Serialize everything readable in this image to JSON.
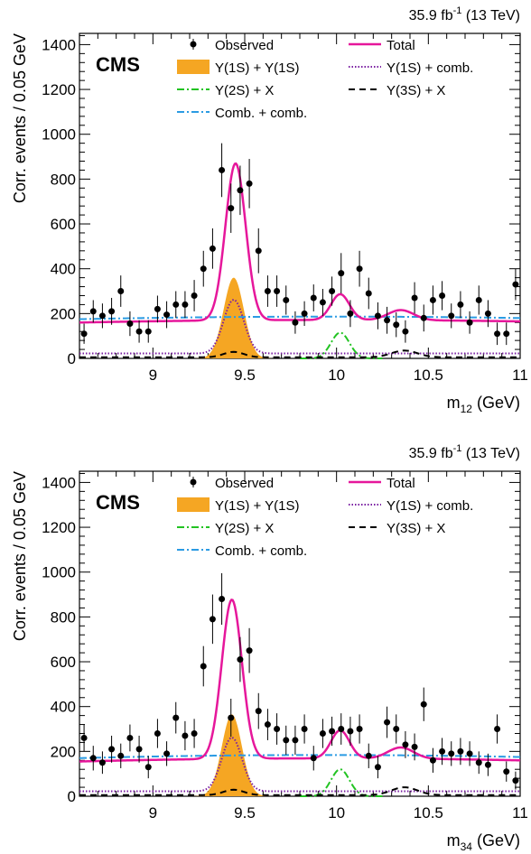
{
  "chart_data": [
    {
      "type": "line",
      "title": "",
      "lumi_label": "35.9 fb",
      "lumi_sup": "-1",
      "lumi_energy": "(13 TeV)",
      "cms_label": "CMS",
      "ylabel": "Corr. events / 0.05 GeV",
      "xlabel_main": "m",
      "xlabel_sub": "12",
      "xlabel_unit": "(GeV)",
      "xlim": [
        8.6,
        11.0
      ],
      "ylim": [
        0,
        1450
      ],
      "x_ticks": [
        9,
        9.5,
        10,
        10.5,
        11
      ],
      "x_tick_labels": [
        "9",
        "9.5",
        "10",
        "10.5",
        "11"
      ],
      "y_ticks": [
        0,
        200,
        400,
        600,
        800,
        1000,
        1200,
        1400
      ],
      "y_tick_labels": [
        "0",
        "200",
        "400",
        "600",
        "800",
        "1000",
        "1200",
        "1400"
      ],
      "grid": false,
      "legend": {
        "placement": "top",
        "entries": [
          {
            "label": "Observed",
            "style": "marker",
            "color": "#000000"
          },
          {
            "label": "Total",
            "style": "solid",
            "color": "#e6179b"
          },
          {
            "label": "Υ(1S) + Υ(1S)",
            "style": "fill",
            "color": "#f5a623"
          },
          {
            "label": "Υ(1S) + comb.",
            "style": "dotted",
            "color": "#7a1fa2"
          },
          {
            "label": "Υ(2S) + X",
            "style": "dashdot",
            "color": "#22c322"
          },
          {
            "label": "Υ(3S) + X",
            "style": "dashed",
            "color": "#000000"
          },
          {
            "label": "Comb. + comb.",
            "style": "dashdot",
            "color": "#2b9be3"
          }
        ]
      },
      "observed": {
        "x": [
          8.625,
          8.675,
          8.725,
          8.775,
          8.825,
          8.875,
          8.925,
          8.975,
          9.025,
          9.075,
          9.125,
          9.175,
          9.225,
          9.275,
          9.325,
          9.375,
          9.425,
          9.475,
          9.525,
          9.575,
          9.625,
          9.675,
          9.725,
          9.775,
          9.825,
          9.875,
          9.925,
          9.975,
          10.025,
          10.075,
          10.125,
          10.175,
          10.225,
          10.275,
          10.325,
          10.375,
          10.425,
          10.475,
          10.525,
          10.575,
          10.625,
          10.675,
          10.725,
          10.775,
          10.825,
          10.875,
          10.925,
          10.975
        ],
        "y": [
          110,
          210,
          190,
          210,
          300,
          155,
          120,
          120,
          220,
          195,
          240,
          240,
          280,
          400,
          490,
          840,
          670,
          750,
          780,
          480,
          300,
          300,
          260,
          160,
          200,
          270,
          250,
          300,
          380,
          200,
          400,
          290,
          190,
          170,
          150,
          120,
          270,
          180,
          260,
          280,
          190,
          240,
          160,
          260,
          200,
          110,
          110,
          330
        ],
        "err": [
          45,
          50,
          55,
          60,
          70,
          55,
          50,
          50,
          60,
          60,
          60,
          60,
          70,
          80,
          90,
          120,
          110,
          110,
          110,
          100,
          70,
          70,
          65,
          50,
          55,
          60,
          60,
          65,
          90,
          60,
          80,
          70,
          60,
          60,
          55,
          50,
          70,
          60,
          65,
          65,
          55,
          60,
          50,
          65,
          60,
          50,
          50,
          70
        ]
      },
      "curves": {
        "total": {
          "comb_base": 175,
          "comb_slope": 20,
          "comb_peak": 20,
          "peak1": 9.45,
          "amp1": 700,
          "sigma1": 0.055,
          "peak2": 10.02,
          "amp2": 115,
          "sigma2": 0.05,
          "peak3": 10.35,
          "amp3": 45,
          "sigma3": 0.07
        },
        "signal_1s1s": {
          "mean": 9.44,
          "amp": 360,
          "sigma": 0.055
        },
        "comb_comb": {
          "start": 175,
          "middle": 195,
          "end": 180
        },
        "one_s_comb": {
          "base": 22,
          "peak": 9.44,
          "amp": 240,
          "sigma": 0.055
        },
        "two_s_x": {
          "mean": 10.02,
          "amp": 115,
          "sigma": 0.05
        },
        "three_s_x": {
          "mean": 10.37,
          "amp": 30,
          "sigma": 0.07
        }
      }
    },
    {
      "type": "line",
      "title": "",
      "lumi_label": "35.9 fb",
      "lumi_sup": "-1",
      "lumi_energy": "(13 TeV)",
      "cms_label": "CMS",
      "ylabel": "Corr. events / 0.05 GeV",
      "xlabel_main": "m",
      "xlabel_sub": "34",
      "xlabel_unit": "(GeV)",
      "xlim": [
        8.6,
        11.0
      ],
      "ylim": [
        0,
        1450
      ],
      "x_ticks": [
        9,
        9.5,
        10,
        10.5,
        11
      ],
      "x_tick_labels": [
        "9",
        "9.5",
        "10",
        "10.5",
        "11"
      ],
      "y_ticks": [
        0,
        200,
        400,
        600,
        800,
        1000,
        1200,
        1400
      ],
      "y_tick_labels": [
        "0",
        "200",
        "400",
        "600",
        "800",
        "1000",
        "1200",
        "1400"
      ],
      "grid": false,
      "legend": {
        "placement": "top",
        "entries": [
          {
            "label": "Observed",
            "style": "marker",
            "color": "#000000"
          },
          {
            "label": "Total",
            "style": "solid",
            "color": "#e6179b"
          },
          {
            "label": "Υ(1S) + Υ(1S)",
            "style": "fill",
            "color": "#f5a623"
          },
          {
            "label": "Υ(1S) + comb.",
            "style": "dotted",
            "color": "#7a1fa2"
          },
          {
            "label": "Υ(2S) + X",
            "style": "dashdot",
            "color": "#22c322"
          },
          {
            "label": "Υ(3S) + X",
            "style": "dashed",
            "color": "#000000"
          },
          {
            "label": "Comb. + comb.",
            "style": "dashdot",
            "color": "#2b9be3"
          }
        ]
      },
      "observed": {
        "x": [
          8.625,
          8.675,
          8.725,
          8.775,
          8.825,
          8.875,
          8.925,
          8.975,
          9.025,
          9.075,
          9.125,
          9.175,
          9.225,
          9.275,
          9.325,
          9.375,
          9.425,
          9.475,
          9.525,
          9.575,
          9.625,
          9.675,
          9.725,
          9.775,
          9.825,
          9.875,
          9.925,
          9.975,
          10.025,
          10.075,
          10.125,
          10.175,
          10.225,
          10.275,
          10.325,
          10.375,
          10.425,
          10.475,
          10.525,
          10.575,
          10.625,
          10.675,
          10.725,
          10.775,
          10.825,
          10.875,
          10.925,
          10.975
        ],
        "y": [
          260,
          170,
          150,
          210,
          180,
          260,
          210,
          130,
          280,
          190,
          350,
          270,
          280,
          580,
          790,
          880,
          350,
          610,
          650,
          380,
          320,
          300,
          250,
          250,
          300,
          170,
          280,
          290,
          300,
          290,
          300,
          180,
          130,
          330,
          300,
          230,
          220,
          410,
          160,
          200,
          190,
          200,
          190,
          150,
          140,
          300,
          110,
          70
        ],
        "err": [
          60,
          55,
          50,
          60,
          55,
          60,
          60,
          50,
          65,
          55,
          70,
          65,
          65,
          90,
          110,
          115,
          85,
          100,
          100,
          80,
          70,
          70,
          65,
          65,
          65,
          55,
          65,
          65,
          70,
          65,
          65,
          55,
          50,
          70,
          65,
          60,
          60,
          75,
          55,
          60,
          55,
          60,
          55,
          50,
          50,
          65,
          45,
          40
        ]
      },
      "curves": {
        "total": {
          "comb_base": 175,
          "comb_slope": 20,
          "comb_peak": 20,
          "peak1": 9.43,
          "amp1": 710,
          "sigma1": 0.055,
          "peak2": 10.02,
          "amp2": 125,
          "sigma2": 0.05,
          "peak3": 10.35,
          "amp3": 50,
          "sigma3": 0.07
        },
        "signal_1s1s": {
          "mean": 9.43,
          "amp": 365,
          "sigma": 0.055
        },
        "comb_comb": {
          "start": 170,
          "middle": 195,
          "end": 175
        },
        "one_s_comb": {
          "base": 22,
          "peak": 9.43,
          "amp": 240,
          "sigma": 0.055
        },
        "two_s_x": {
          "mean": 10.02,
          "amp": 120,
          "sigma": 0.05
        },
        "three_s_x": {
          "mean": 10.37,
          "amp": 35,
          "sigma": 0.07
        }
      }
    }
  ]
}
